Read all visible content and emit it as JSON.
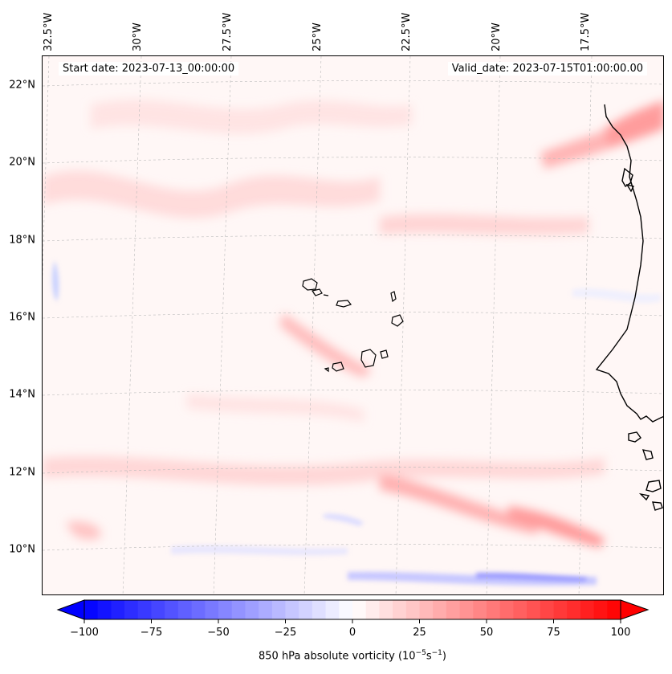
{
  "map": {
    "start_date_label": "Start date: 2023-07-13_00:00:00",
    "valid_date_label": "Valid_date: 2023-07-15T01:00:00.00",
    "lat_labels": [
      "22°N",
      "20°N",
      "18°N",
      "16°N",
      "14°N",
      "12°N",
      "10°N"
    ],
    "lon_labels": [
      "32.5°W",
      "30°W",
      "27.5°W",
      "25°W",
      "22.5°W",
      "20°W",
      "17.5°W"
    ],
    "variable": "850 hPa absolute vorticity",
    "units_prefix": "(10",
    "units_exp1": "−5",
    "units_mid": "s",
    "units_exp2": "−1",
    "units_suffix": ")"
  },
  "colorbar": {
    "ticks": [
      "−100",
      "−75",
      "−50",
      "−25",
      "0",
      "25",
      "50",
      "75",
      "100"
    ],
    "min": -100,
    "max": 100,
    "levels": 40,
    "colors": {
      "negative": "#0000ff",
      "neutral": "#ffffff",
      "positive": "#ff0000"
    }
  }
}
